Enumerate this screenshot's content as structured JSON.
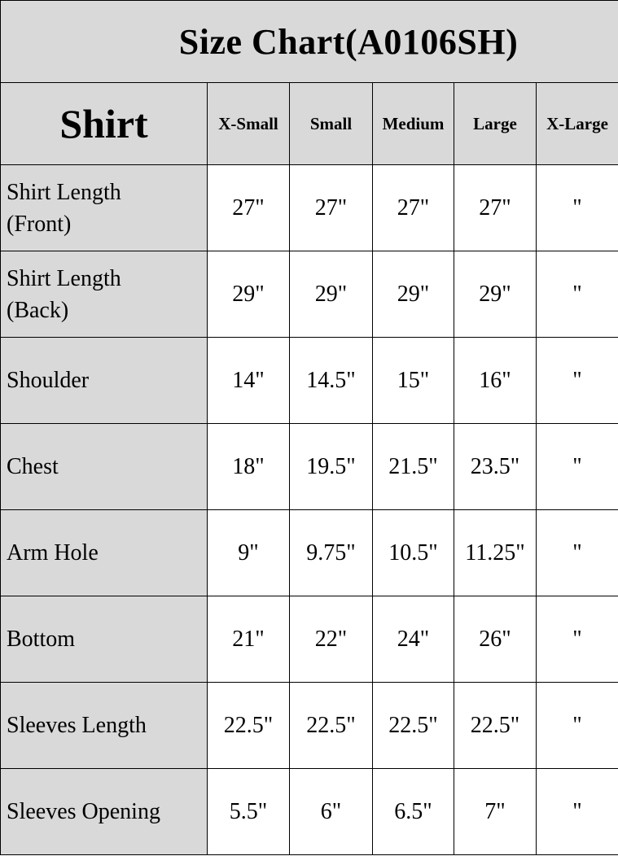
{
  "title": "Size Chart(A0106SH)",
  "header": {
    "category": "Shirt",
    "sizes": [
      "X-Small",
      "Small",
      "Medium",
      "Large",
      "X-Large"
    ]
  },
  "rows": [
    {
      "label": "Shirt Length (Front)",
      "values": [
        "27\"",
        "27\"",
        "27\"",
        "27\"",
        "\""
      ]
    },
    {
      "label": "Shirt Length (Back)",
      "values": [
        "29\"",
        "29\"",
        "29\"",
        "29\"",
        "\""
      ]
    },
    {
      "label": "Shoulder",
      "values": [
        "14\"",
        "14.5\"",
        "15\"",
        "16\"",
        "\""
      ]
    },
    {
      "label": "Chest",
      "values": [
        "18\"",
        "19.5\"",
        "21.5\"",
        "23.5\"",
        "\""
      ]
    },
    {
      "label": "Arm Hole",
      "values": [
        "9\"",
        "9.75\"",
        "10.5\"",
        "11.25\"",
        "\""
      ]
    },
    {
      "label": "Bottom",
      "values": [
        "21\"",
        "22\"",
        "24\"",
        "26\"",
        "\""
      ]
    },
    {
      "label": "Sleeves Length",
      "values": [
        "22.5\"",
        "22.5\"",
        "22.5\"",
        "22.5\"",
        "\""
      ]
    },
    {
      "label": "Sleeves Opening",
      "values": [
        "5.5\"",
        "6\"",
        "6.5\"",
        "7\"",
        "\""
      ]
    }
  ],
  "colors": {
    "header_bg": "#d9d9d9",
    "cell_bg": "#ffffff",
    "border": "#000000"
  }
}
